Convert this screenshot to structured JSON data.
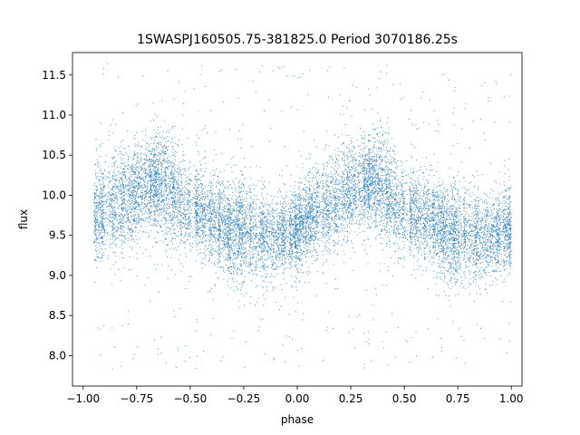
{
  "chart_data": {
    "type": "scatter",
    "title": "1SWASPJ160505.75-381825.0 Period 3070186.25s",
    "xlabel": "phase",
    "ylabel": "flux",
    "xlim": [
      -1.05,
      1.05
    ],
    "ylim": [
      7.62,
      11.78
    ],
    "x_ticks": [
      -1.0,
      -0.75,
      -0.5,
      -0.25,
      0.0,
      0.25,
      0.5,
      0.75,
      1.0
    ],
    "x_tick_labels": [
      "−1.00",
      "−0.75",
      "−0.50",
      "−0.25",
      "0.00",
      "0.25",
      "0.50",
      "0.75",
      "1.00"
    ],
    "y_ticks": [
      8.0,
      8.5,
      9.0,
      9.5,
      10.0,
      10.5,
      11.0,
      11.5
    ],
    "y_tick_labels": [
      "8.0",
      "8.5",
      "9.0",
      "9.5",
      "10.0",
      "10.5",
      "11.0",
      "11.5"
    ],
    "grid": false,
    "marker_color": "#1f77b4",
    "profile": {
      "phase": [
        0.0,
        0.05,
        0.1,
        0.15,
        0.2,
        0.25,
        0.3,
        0.35,
        0.4,
        0.45,
        0.5,
        0.55,
        0.6,
        0.65,
        0.7,
        0.75,
        0.8,
        0.85,
        0.9,
        0.95,
        1.0
      ],
      "mean_flux": [
        9.55,
        9.72,
        9.82,
        9.88,
        9.95,
        10.05,
        10.12,
        10.15,
        10.08,
        9.92,
        9.82,
        9.78,
        9.72,
        9.65,
        9.55,
        9.55,
        9.52,
        9.45,
        9.48,
        9.52,
        9.55
      ],
      "scatter": [
        0.25,
        0.28,
        0.3,
        0.32,
        0.32,
        0.3,
        0.28,
        0.3,
        0.35,
        0.3,
        0.28,
        0.27,
        0.27,
        0.27,
        0.28,
        0.3,
        0.3,
        0.28,
        0.25,
        0.25,
        0.25
      ]
    },
    "n_points": 14000,
    "outlier_fraction": 0.035,
    "outlier_range": [
      7.8,
      11.65
    ],
    "phase_span": [
      -0.95,
      1.0
    ]
  }
}
